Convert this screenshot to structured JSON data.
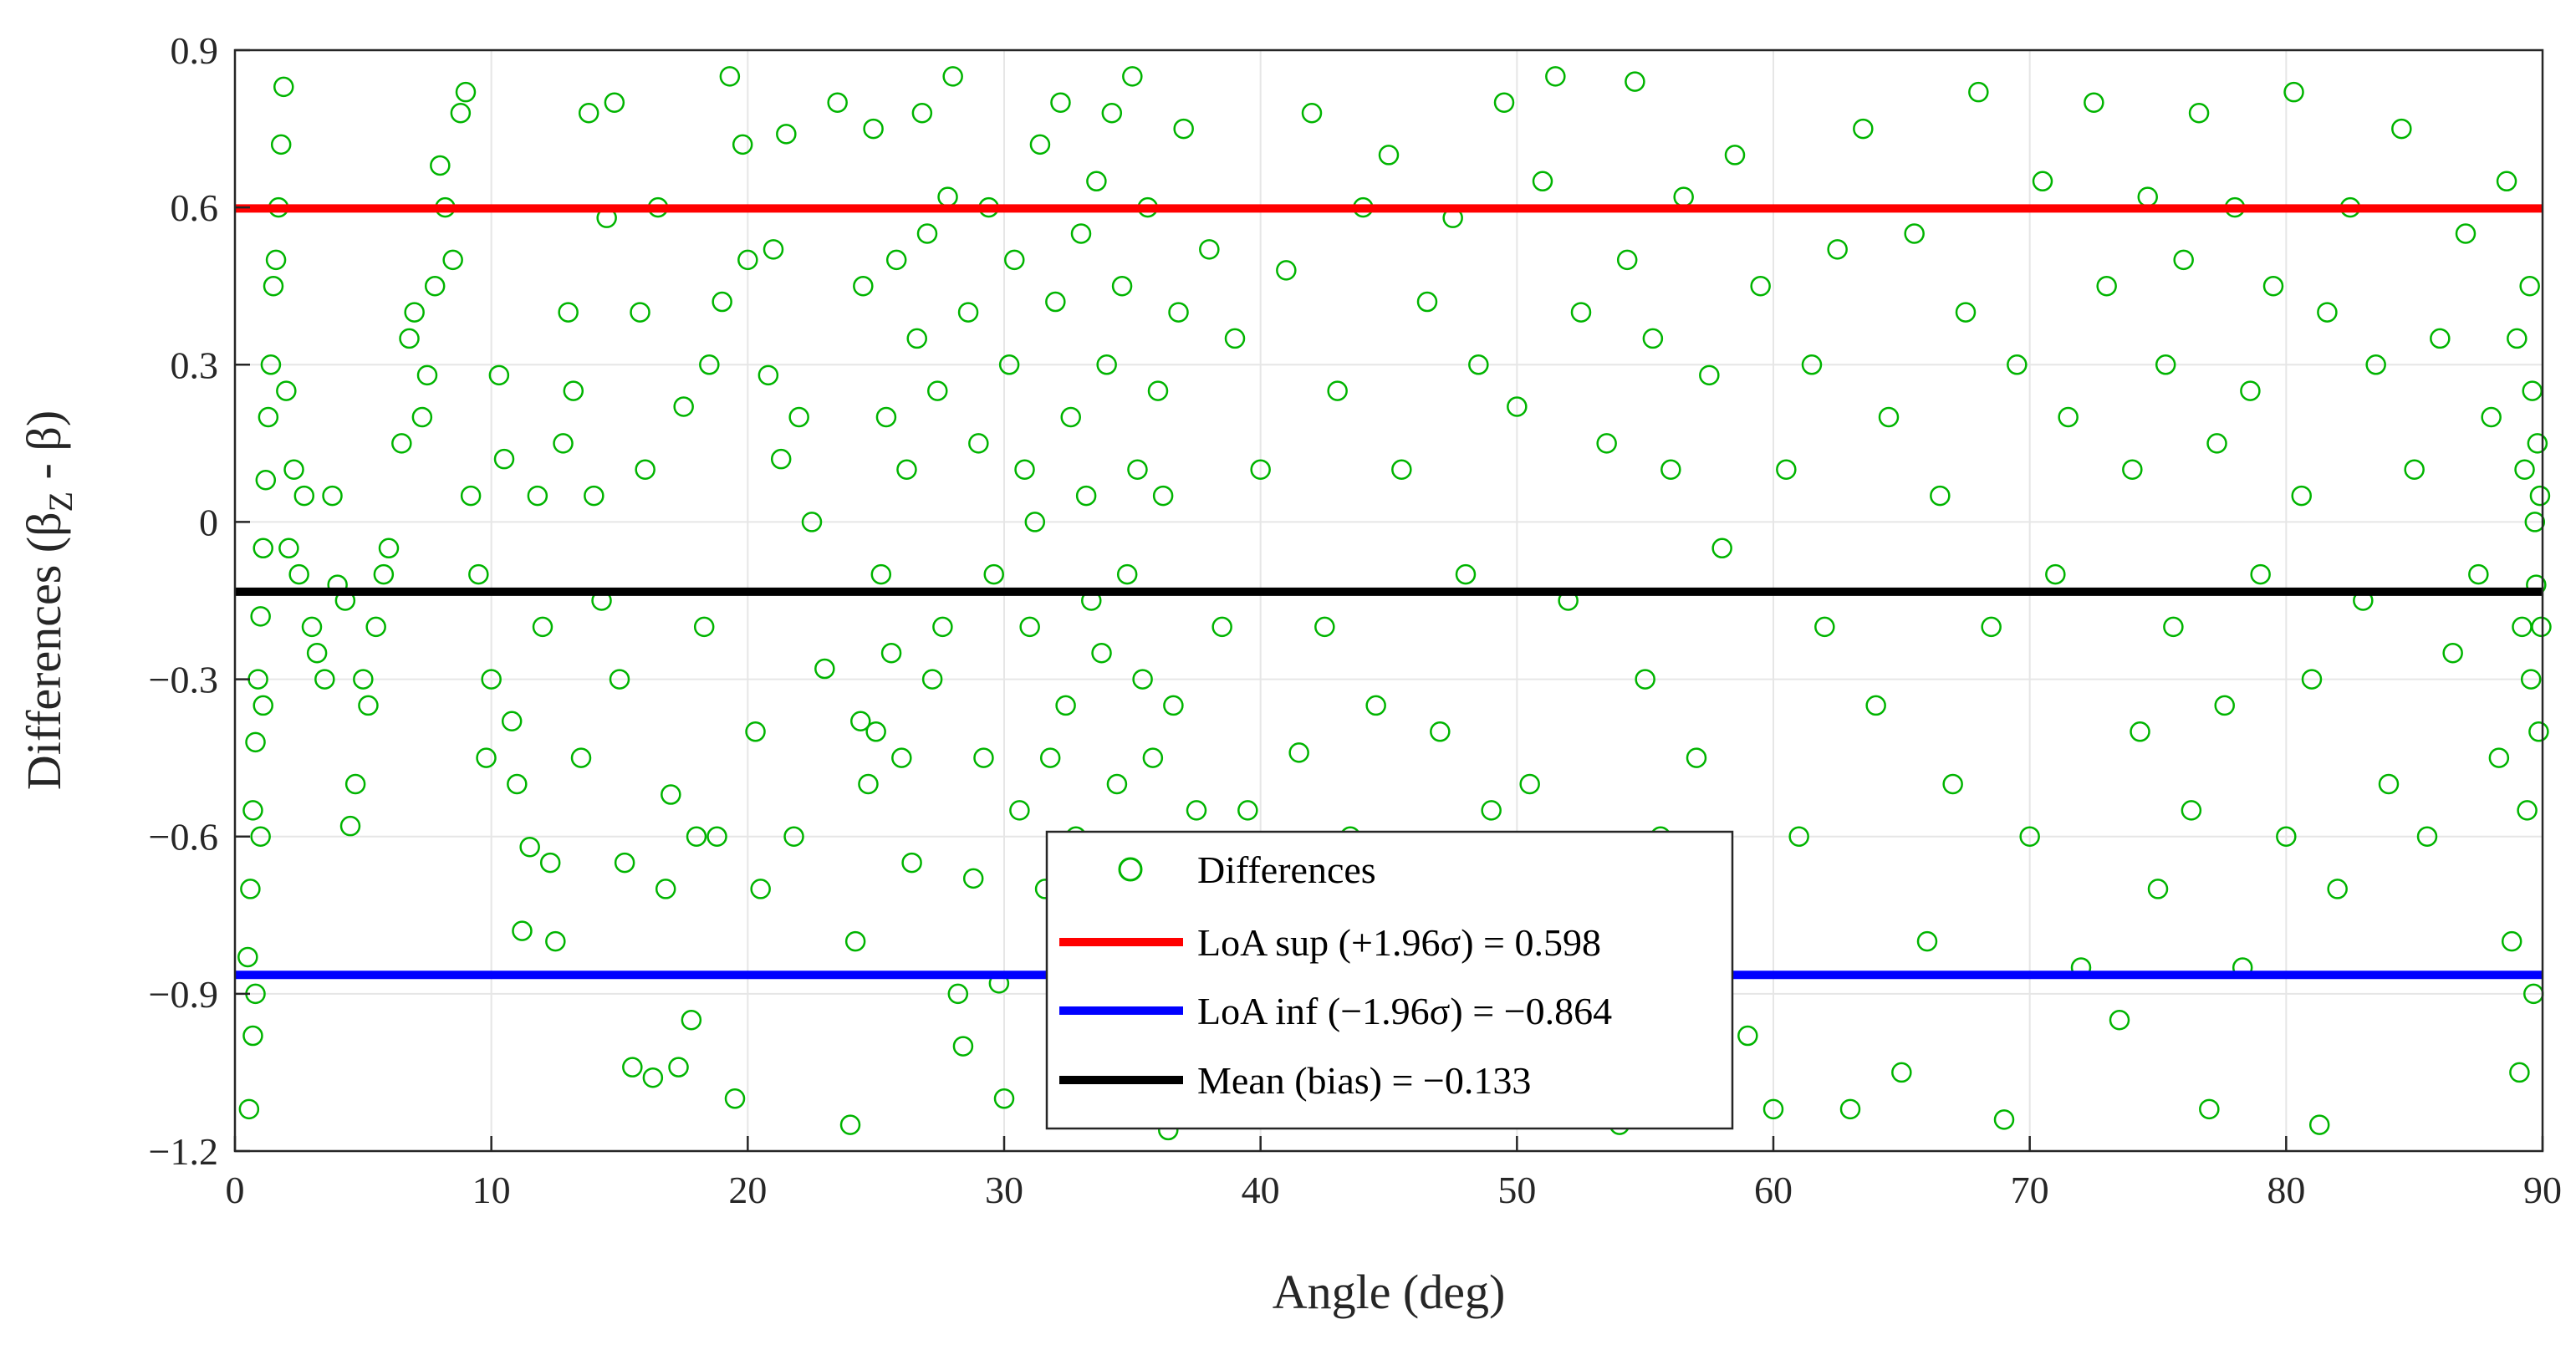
{
  "chart_data": {
    "type": "scatter",
    "xlabel": "Angle (deg)",
    "ylabel": {
      "prefix": "Differences (β",
      "sub": "Z",
      "suffix": " - β)"
    },
    "xlim": [
      0,
      90
    ],
    "ylim": [
      -1.2,
      0.9
    ],
    "x_ticks": [
      0,
      10,
      20,
      30,
      40,
      50,
      60,
      70,
      80,
      90
    ],
    "x_tick_labels": [
      "0",
      "10",
      "20",
      "30",
      "40",
      "50",
      "60",
      "70",
      "80",
      "90"
    ],
    "y_ticks": [
      0.9,
      0.6,
      0.3,
      0,
      -0.3,
      -0.6,
      -0.9,
      -1.2
    ],
    "y_tick_labels": [
      "0.9",
      "0.6",
      "0.3",
      "0",
      "−0.3",
      "−0.6",
      "−0.9",
      "−1.2"
    ],
    "grid": true,
    "legend_position": "bottom-center",
    "series": [
      {
        "name": "Differences",
        "kind": "scatter",
        "marker": "open-circle",
        "color": "#00b400",
        "points": [
          [
            0.5,
            -0.83
          ],
          [
            0.6,
            -0.7
          ],
          [
            0.7,
            -0.55
          ],
          [
            0.8,
            -0.42
          ],
          [
            0.9,
            -0.3
          ],
          [
            1.0,
            -0.18
          ],
          [
            1.1,
            -0.05
          ],
          [
            1.2,
            0.08
          ],
          [
            1.3,
            0.2
          ],
          [
            1.4,
            0.3
          ],
          [
            0.55,
            -1.12
          ],
          [
            0.7,
            -0.98
          ],
          [
            0.8,
            -0.9
          ],
          [
            1.0,
            -0.6
          ],
          [
            1.1,
            -0.35
          ],
          [
            1.5,
            0.45
          ],
          [
            1.6,
            0.5
          ],
          [
            1.8,
            0.72
          ],
          [
            1.9,
            0.83
          ],
          [
            2.0,
            0.25
          ],
          [
            1.7,
            0.6
          ],
          [
            2.1,
            -0.05
          ],
          [
            2.3,
            0.1
          ],
          [
            2.5,
            -0.1
          ],
          [
            2.7,
            0.05
          ],
          [
            3.0,
            -0.2
          ],
          [
            3.2,
            -0.25
          ],
          [
            3.5,
            -0.3
          ],
          [
            3.8,
            0.05
          ],
          [
            4.0,
            -0.12
          ],
          [
            4.3,
            -0.15
          ],
          [
            4.5,
            -0.58
          ],
          [
            4.7,
            -0.5
          ],
          [
            5.0,
            -0.3
          ],
          [
            5.2,
            -0.35
          ],
          [
            5.5,
            -0.2
          ],
          [
            5.8,
            -0.1
          ],
          [
            6.0,
            -0.05
          ],
          [
            6.5,
            0.15
          ],
          [
            6.8,
            0.35
          ],
          [
            7.0,
            0.4
          ],
          [
            7.3,
            0.2
          ],
          [
            7.5,
            0.28
          ],
          [
            7.8,
            0.45
          ],
          [
            8.0,
            0.68
          ],
          [
            8.2,
            0.6
          ],
          [
            8.5,
            0.5
          ],
          [
            8.8,
            0.78
          ],
          [
            9.0,
            0.82
          ],
          [
            9.2,
            0.05
          ],
          [
            9.5,
            -0.1
          ],
          [
            9.8,
            -0.45
          ],
          [
            10.0,
            -0.3
          ],
          [
            10.3,
            0.28
          ],
          [
            10.5,
            0.12
          ],
          [
            10.8,
            -0.38
          ],
          [
            11.0,
            -0.5
          ],
          [
            11.2,
            -0.78
          ],
          [
            11.5,
            -0.62
          ],
          [
            11.8,
            0.05
          ],
          [
            12.0,
            -0.2
          ],
          [
            12.3,
            -0.65
          ],
          [
            12.5,
            -0.8
          ],
          [
            12.8,
            0.15
          ],
          [
            13.0,
            0.4
          ],
          [
            13.2,
            0.25
          ],
          [
            13.5,
            -0.45
          ],
          [
            13.8,
            0.78
          ],
          [
            14.0,
            0.05
          ],
          [
            14.3,
            -0.15
          ],
          [
            14.5,
            0.58
          ],
          [
            14.8,
            0.8
          ],
          [
            15.0,
            -0.3
          ],
          [
            15.2,
            -0.65
          ],
          [
            15.5,
            -1.04
          ],
          [
            15.8,
            0.4
          ],
          [
            16.0,
            0.1
          ],
          [
            16.3,
            -1.06
          ],
          [
            16.5,
            0.6
          ],
          [
            16.8,
            -0.7
          ],
          [
            17.0,
            -0.52
          ],
          [
            17.3,
            -1.04
          ],
          [
            17.5,
            0.22
          ],
          [
            17.8,
            -0.95
          ],
          [
            18.0,
            -0.6
          ],
          [
            18.3,
            -0.2
          ],
          [
            18.5,
            0.3
          ],
          [
            18.8,
            -0.6
          ],
          [
            19.0,
            0.42
          ],
          [
            19.3,
            0.85
          ],
          [
            19.5,
            -1.1
          ],
          [
            19.8,
            0.72
          ],
          [
            20.0,
            0.5
          ],
          [
            20.3,
            -0.4
          ],
          [
            20.5,
            -0.7
          ],
          [
            20.8,
            0.28
          ],
          [
            21.0,
            0.52
          ],
          [
            21.3,
            0.12
          ],
          [
            21.5,
            0.74
          ],
          [
            21.8,
            -0.6
          ],
          [
            22.0,
            0.2
          ],
          [
            22.5,
            0.0
          ],
          [
            23.0,
            -0.28
          ],
          [
            23.5,
            0.8
          ],
          [
            24.0,
            -1.15
          ],
          [
            24.2,
            -0.8
          ],
          [
            24.4,
            -0.38
          ],
          [
            24.5,
            0.45
          ],
          [
            24.7,
            -0.5
          ],
          [
            24.9,
            0.75
          ],
          [
            25.0,
            -0.4
          ],
          [
            25.2,
            -0.1
          ],
          [
            25.4,
            0.2
          ],
          [
            25.6,
            -0.25
          ],
          [
            25.8,
            0.5
          ],
          [
            26.0,
            -0.45
          ],
          [
            26.2,
            0.1
          ],
          [
            26.4,
            -0.65
          ],
          [
            26.6,
            0.35
          ],
          [
            26.8,
            0.78
          ],
          [
            27.0,
            0.55
          ],
          [
            27.2,
            -0.3
          ],
          [
            27.4,
            0.25
          ],
          [
            27.6,
            -0.2
          ],
          [
            27.8,
            0.62
          ],
          [
            28.0,
            0.85
          ],
          [
            28.2,
            -0.9
          ],
          [
            28.4,
            -1.0
          ],
          [
            28.6,
            0.4
          ],
          [
            28.8,
            -0.68
          ],
          [
            29.0,
            0.15
          ],
          [
            29.2,
            -0.45
          ],
          [
            29.4,
            0.6
          ],
          [
            29.6,
            -0.1
          ],
          [
            29.8,
            -0.88
          ],
          [
            30.0,
            -1.1
          ],
          [
            30.2,
            0.3
          ],
          [
            30.4,
            0.5
          ],
          [
            30.6,
            -0.55
          ],
          [
            30.8,
            0.1
          ],
          [
            31.0,
            -0.2
          ],
          [
            31.2,
            0.0
          ],
          [
            31.4,
            0.72
          ],
          [
            31.6,
            -0.7
          ],
          [
            31.8,
            -0.45
          ],
          [
            32.0,
            0.42
          ],
          [
            32.2,
            0.8
          ],
          [
            32.4,
            -0.35
          ],
          [
            32.6,
            0.2
          ],
          [
            32.8,
            -0.6
          ],
          [
            33.0,
            0.55
          ],
          [
            33.2,
            0.05
          ],
          [
            33.4,
            -0.15
          ],
          [
            33.6,
            0.65
          ],
          [
            33.8,
            -0.25
          ],
          [
            34.0,
            0.3
          ],
          [
            34.2,
            0.78
          ],
          [
            34.4,
            -0.5
          ],
          [
            34.6,
            0.45
          ],
          [
            34.8,
            -0.1
          ],
          [
            35.0,
            0.85
          ],
          [
            35.2,
            0.1
          ],
          [
            35.4,
            -0.3
          ],
          [
            35.6,
            0.6
          ],
          [
            35.8,
            -0.45
          ],
          [
            36.0,
            0.25
          ],
          [
            36.2,
            0.05
          ],
          [
            36.4,
            -1.16
          ],
          [
            36.6,
            -0.35
          ],
          [
            36.8,
            0.4
          ],
          [
            37.0,
            0.75
          ],
          [
            37.5,
            -0.55
          ],
          [
            38.0,
            0.52
          ],
          [
            38.5,
            -0.2
          ],
          [
            39.0,
            0.35
          ],
          [
            39.5,
            -0.55
          ],
          [
            40.0,
            0.1
          ],
          [
            40.5,
            -0.75
          ],
          [
            41.0,
            0.48
          ],
          [
            41.5,
            -0.44
          ],
          [
            42.0,
            0.78
          ],
          [
            42.5,
            -0.2
          ],
          [
            43.0,
            0.25
          ],
          [
            43.5,
            -0.6
          ],
          [
            44.0,
            0.6
          ],
          [
            44.5,
            -0.35
          ],
          [
            45.0,
            0.7
          ],
          [
            45.5,
            0.1
          ],
          [
            46.0,
            -0.9
          ],
          [
            46.5,
            0.42
          ],
          [
            47.0,
            -0.4
          ],
          [
            47.5,
            0.58
          ],
          [
            48.0,
            -0.1
          ],
          [
            48.5,
            0.3
          ],
          [
            49.0,
            -0.55
          ],
          [
            49.5,
            0.8
          ],
          [
            50.0,
            0.22
          ],
          [
            50.5,
            -0.5
          ],
          [
            51.0,
            0.65
          ],
          [
            51.5,
            0.85
          ],
          [
            52.0,
            -0.15
          ],
          [
            52.5,
            0.4
          ],
          [
            53.0,
            -0.65
          ],
          [
            53.5,
            0.15
          ],
          [
            54.0,
            -1.15
          ],
          [
            54.3,
            0.5
          ],
          [
            54.6,
            0.84
          ],
          [
            55.0,
            -0.3
          ],
          [
            55.3,
            0.35
          ],
          [
            55.6,
            -0.6
          ],
          [
            56.0,
            0.1
          ],
          [
            56.5,
            0.62
          ],
          [
            57.0,
            -0.45
          ],
          [
            57.5,
            0.28
          ],
          [
            58.0,
            -0.05
          ],
          [
            58.5,
            0.7
          ],
          [
            59.0,
            -0.98
          ],
          [
            59.5,
            0.45
          ],
          [
            60.0,
            -1.12
          ],
          [
            60.5,
            0.1
          ],
          [
            61.0,
            -0.6
          ],
          [
            61.5,
            0.3
          ],
          [
            62.0,
            -0.2
          ],
          [
            62.5,
            0.52
          ],
          [
            63.0,
            -1.12
          ],
          [
            63.5,
            0.75
          ],
          [
            64.0,
            -0.35
          ],
          [
            64.5,
            0.2
          ],
          [
            65.0,
            -1.05
          ],
          [
            65.5,
            0.55
          ],
          [
            66.0,
            -0.8
          ],
          [
            66.5,
            0.05
          ],
          [
            67.0,
            -0.5
          ],
          [
            67.5,
            0.4
          ],
          [
            68.0,
            0.82
          ],
          [
            68.5,
            -0.2
          ],
          [
            69.0,
            -1.14
          ],
          [
            69.5,
            0.3
          ],
          [
            70.0,
            -0.6
          ],
          [
            70.5,
            0.65
          ],
          [
            71.0,
            -0.1
          ],
          [
            71.5,
            0.2
          ],
          [
            72.0,
            -0.85
          ],
          [
            72.5,
            0.8
          ],
          [
            73.0,
            0.45
          ],
          [
            73.5,
            -0.95
          ],
          [
            74.0,
            0.1
          ],
          [
            74.3,
            -0.4
          ],
          [
            74.6,
            0.62
          ],
          [
            75.0,
            -0.7
          ],
          [
            75.3,
            0.3
          ],
          [
            75.6,
            -0.2
          ],
          [
            76.0,
            0.5
          ],
          [
            76.3,
            -0.55
          ],
          [
            76.6,
            0.78
          ],
          [
            77.0,
            -1.12
          ],
          [
            77.3,
            0.15
          ],
          [
            77.6,
            -0.35
          ],
          [
            78.0,
            0.6
          ],
          [
            78.3,
            -0.85
          ],
          [
            78.6,
            0.25
          ],
          [
            79.0,
            -0.1
          ],
          [
            79.5,
            0.45
          ],
          [
            80.0,
            -0.6
          ],
          [
            80.3,
            0.82
          ],
          [
            80.6,
            0.05
          ],
          [
            81.0,
            -0.3
          ],
          [
            81.3,
            -1.15
          ],
          [
            81.6,
            0.4
          ],
          [
            82.0,
            -0.7
          ],
          [
            82.5,
            0.6
          ],
          [
            83.0,
            -0.15
          ],
          [
            83.5,
            0.3
          ],
          [
            84.0,
            -0.5
          ],
          [
            84.5,
            0.75
          ],
          [
            85.0,
            0.1
          ],
          [
            85.5,
            -0.6
          ],
          [
            86.0,
            0.35
          ],
          [
            86.5,
            -0.25
          ],
          [
            87.0,
            0.55
          ],
          [
            87.5,
            -0.1
          ],
          [
            88.0,
            0.2
          ],
          [
            88.3,
            -0.45
          ],
          [
            88.6,
            0.65
          ],
          [
            88.8,
            -0.8
          ],
          [
            89.0,
            0.35
          ],
          [
            89.1,
            -1.05
          ],
          [
            89.2,
            -0.2
          ],
          [
            89.3,
            0.1
          ],
          [
            89.4,
            -0.55
          ],
          [
            89.5,
            0.45
          ],
          [
            89.55,
            -0.3
          ],
          [
            89.6,
            0.25
          ],
          [
            89.65,
            -0.9
          ],
          [
            89.7,
            0.0
          ],
          [
            89.75,
            -0.12
          ],
          [
            89.8,
            0.15
          ],
          [
            89.85,
            -0.4
          ],
          [
            89.9,
            0.05
          ],
          [
            89.95,
            -0.2
          ]
        ]
      },
      {
        "name": "LoA sup (+1.96σ) = 0.598",
        "kind": "hline",
        "value": 0.598,
        "color": "#ff0000"
      },
      {
        "name": "LoA inf (−1.96σ) = −0.864",
        "kind": "hline",
        "value": -0.864,
        "color": "#0000ff"
      },
      {
        "name": "Mean (bias) = −0.133",
        "kind": "hline",
        "value": -0.133,
        "color": "#000000"
      }
    ]
  }
}
